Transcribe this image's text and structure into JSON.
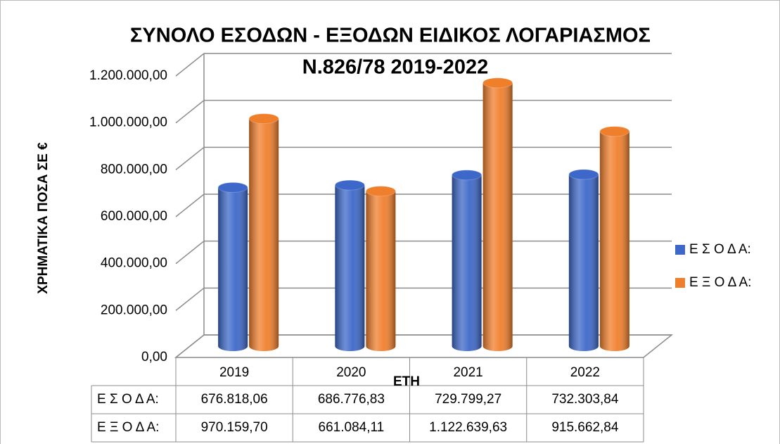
{
  "chart_data": {
    "type": "bar3d",
    "title": [
      "ΣΥΝΟΛΟ ΕΣΟΔΩΝ - ΕΞΟΔΩΝ ΕΙΔΙΚΟΣ ΛΟΓΑΡΙΑΣΜΟΣ",
      "Ν.826/78 2019-2022"
    ],
    "y_label": "ΧΡΗΜΑΤΙΚΑ ΠΟΣΑ ΣΕ €",
    "x_label": "ΕΤΗ",
    "categories": [
      "2019",
      "2020",
      "2021",
      "2022"
    ],
    "series": [
      {
        "name": "Ε Σ Ο Δ Α:",
        "color": "#3d68c9",
        "values": [
          676818.06,
          686776.83,
          729799.27,
          732303.84
        ],
        "value_labels": [
          "676.818,06",
          "686.776,83",
          "729.799,27",
          "732.303,84"
        ]
      },
      {
        "name": "Ε Ξ Ο Δ Α:",
        "color": "#f07f2c",
        "values": [
          970159.7,
          661084.11,
          1122639.63,
          915662.84
        ],
        "value_labels": [
          "970.159,70",
          "661.084,11",
          "1.122.639,63",
          "915.662,84"
        ]
      }
    ],
    "ylim": [
      0,
      1200000
    ],
    "yticks": [
      {
        "value": 0,
        "label": "0,00"
      },
      {
        "value": 200000,
        "label": "200.000,00"
      },
      {
        "value": 400000,
        "label": "400.000,00"
      },
      {
        "value": 600000,
        "label": "600.000,00"
      },
      {
        "value": 800000,
        "label": "800.000,00"
      },
      {
        "value": 1000000,
        "label": "1.000.000,00"
      },
      {
        "value": 1200000,
        "label": "1.200.000,00"
      }
    ],
    "grid": true,
    "legend": "right",
    "data_table": true
  }
}
